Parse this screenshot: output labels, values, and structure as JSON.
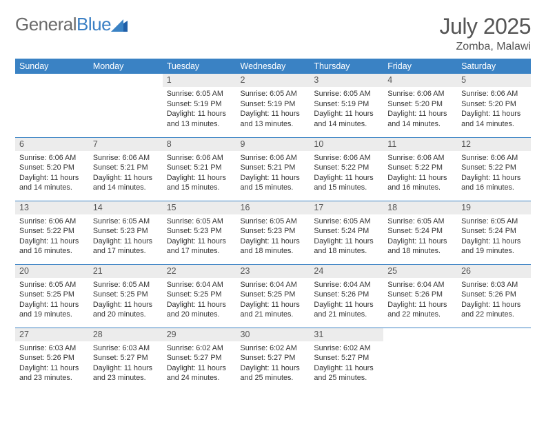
{
  "brand": {
    "name_gray": "General",
    "name_blue": "Blue"
  },
  "header": {
    "month_year": "July 2025",
    "location": "Zomba, Malawi"
  },
  "colors": {
    "header_bg": "#3a82c4",
    "header_text": "#ffffff",
    "daynum_bg": "#ececec",
    "body_text": "#333333",
    "rule": "#3a82c4",
    "logo_gray": "#6a6a6a",
    "logo_blue": "#3a7fc4"
  },
  "weekdays": [
    "Sunday",
    "Monday",
    "Tuesday",
    "Wednesday",
    "Thursday",
    "Friday",
    "Saturday"
  ],
  "layout": {
    "cols": 7,
    "rows": 5,
    "leading_blanks": 2
  },
  "days": [
    {
      "d": 1,
      "sunrise": "6:05 AM",
      "sunset": "5:19 PM",
      "daylight": "11 hours and 13 minutes."
    },
    {
      "d": 2,
      "sunrise": "6:05 AM",
      "sunset": "5:19 PM",
      "daylight": "11 hours and 13 minutes."
    },
    {
      "d": 3,
      "sunrise": "6:05 AM",
      "sunset": "5:19 PM",
      "daylight": "11 hours and 14 minutes."
    },
    {
      "d": 4,
      "sunrise": "6:06 AM",
      "sunset": "5:20 PM",
      "daylight": "11 hours and 14 minutes."
    },
    {
      "d": 5,
      "sunrise": "6:06 AM",
      "sunset": "5:20 PM",
      "daylight": "11 hours and 14 minutes."
    },
    {
      "d": 6,
      "sunrise": "6:06 AM",
      "sunset": "5:20 PM",
      "daylight": "11 hours and 14 minutes."
    },
    {
      "d": 7,
      "sunrise": "6:06 AM",
      "sunset": "5:21 PM",
      "daylight": "11 hours and 14 minutes."
    },
    {
      "d": 8,
      "sunrise": "6:06 AM",
      "sunset": "5:21 PM",
      "daylight": "11 hours and 15 minutes."
    },
    {
      "d": 9,
      "sunrise": "6:06 AM",
      "sunset": "5:21 PM",
      "daylight": "11 hours and 15 minutes."
    },
    {
      "d": 10,
      "sunrise": "6:06 AM",
      "sunset": "5:22 PM",
      "daylight": "11 hours and 15 minutes."
    },
    {
      "d": 11,
      "sunrise": "6:06 AM",
      "sunset": "5:22 PM",
      "daylight": "11 hours and 16 minutes."
    },
    {
      "d": 12,
      "sunrise": "6:06 AM",
      "sunset": "5:22 PM",
      "daylight": "11 hours and 16 minutes."
    },
    {
      "d": 13,
      "sunrise": "6:06 AM",
      "sunset": "5:22 PM",
      "daylight": "11 hours and 16 minutes."
    },
    {
      "d": 14,
      "sunrise": "6:05 AM",
      "sunset": "5:23 PM",
      "daylight": "11 hours and 17 minutes."
    },
    {
      "d": 15,
      "sunrise": "6:05 AM",
      "sunset": "5:23 PM",
      "daylight": "11 hours and 17 minutes."
    },
    {
      "d": 16,
      "sunrise": "6:05 AM",
      "sunset": "5:23 PM",
      "daylight": "11 hours and 18 minutes."
    },
    {
      "d": 17,
      "sunrise": "6:05 AM",
      "sunset": "5:24 PM",
      "daylight": "11 hours and 18 minutes."
    },
    {
      "d": 18,
      "sunrise": "6:05 AM",
      "sunset": "5:24 PM",
      "daylight": "11 hours and 18 minutes."
    },
    {
      "d": 19,
      "sunrise": "6:05 AM",
      "sunset": "5:24 PM",
      "daylight": "11 hours and 19 minutes."
    },
    {
      "d": 20,
      "sunrise": "6:05 AM",
      "sunset": "5:25 PM",
      "daylight": "11 hours and 19 minutes."
    },
    {
      "d": 21,
      "sunrise": "6:05 AM",
      "sunset": "5:25 PM",
      "daylight": "11 hours and 20 minutes."
    },
    {
      "d": 22,
      "sunrise": "6:04 AM",
      "sunset": "5:25 PM",
      "daylight": "11 hours and 20 minutes."
    },
    {
      "d": 23,
      "sunrise": "6:04 AM",
      "sunset": "5:25 PM",
      "daylight": "11 hours and 21 minutes."
    },
    {
      "d": 24,
      "sunrise": "6:04 AM",
      "sunset": "5:26 PM",
      "daylight": "11 hours and 21 minutes."
    },
    {
      "d": 25,
      "sunrise": "6:04 AM",
      "sunset": "5:26 PM",
      "daylight": "11 hours and 22 minutes."
    },
    {
      "d": 26,
      "sunrise": "6:03 AM",
      "sunset": "5:26 PM",
      "daylight": "11 hours and 22 minutes."
    },
    {
      "d": 27,
      "sunrise": "6:03 AM",
      "sunset": "5:26 PM",
      "daylight": "11 hours and 23 minutes."
    },
    {
      "d": 28,
      "sunrise": "6:03 AM",
      "sunset": "5:27 PM",
      "daylight": "11 hours and 23 minutes."
    },
    {
      "d": 29,
      "sunrise": "6:02 AM",
      "sunset": "5:27 PM",
      "daylight": "11 hours and 24 minutes."
    },
    {
      "d": 30,
      "sunrise": "6:02 AM",
      "sunset": "5:27 PM",
      "daylight": "11 hours and 25 minutes."
    },
    {
      "d": 31,
      "sunrise": "6:02 AM",
      "sunset": "5:27 PM",
      "daylight": "11 hours and 25 minutes."
    }
  ],
  "labels": {
    "sunrise": "Sunrise:",
    "sunset": "Sunset:",
    "daylight": "Daylight:"
  }
}
